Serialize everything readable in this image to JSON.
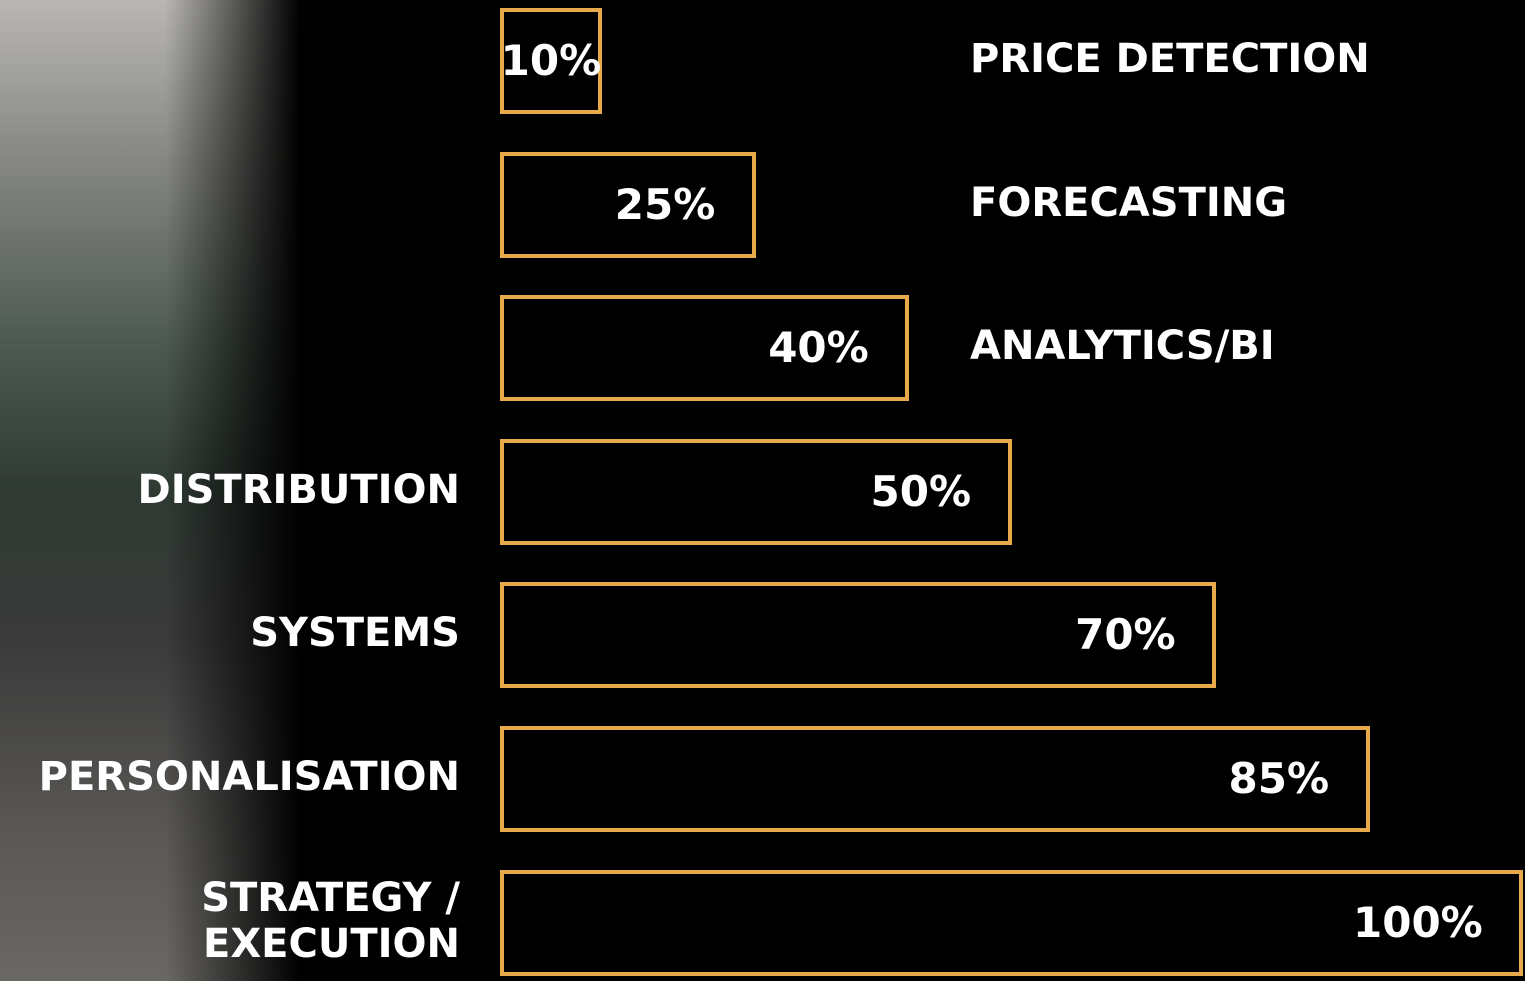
{
  "chart_data": {
    "type": "bar",
    "orientation": "horizontal",
    "categories": [
      "PRICE DETECTION",
      "FORECASTING",
      "ANALYTICS/BI",
      "DISTRIBUTION",
      "SYSTEMS",
      "PERSONALISATION",
      "STRATEGY /\nEXECUTION"
    ],
    "values": [
      10,
      25,
      40,
      50,
      70,
      85,
      100
    ],
    "value_labels": [
      "10%",
      "25%",
      "40%",
      "50%",
      "70%",
      "85%",
      "100%"
    ],
    "color": "#e8a94a",
    "xlim": [
      0,
      100
    ]
  }
}
